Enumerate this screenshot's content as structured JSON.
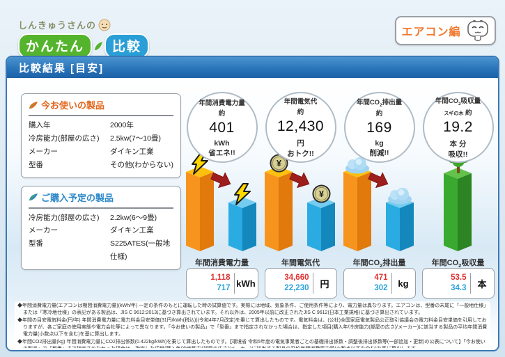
{
  "logo": {
    "prefix": "しんきゅうさんの",
    "brand_green": "かんたん",
    "brand_blue": "比較"
  },
  "edition_badge": {
    "label": "エアコン編"
  },
  "header": {
    "title": "比較結果 [目安]"
  },
  "current_product": {
    "title": "今お使いの製品",
    "rows": [
      {
        "label": "購入年",
        "value": "2000年"
      },
      {
        "label": "冷房能力(部屋の広さ)",
        "value": "2.5kw(7〜10畳)"
      },
      {
        "label": "メーカー",
        "value": "ダイキン工業"
      },
      {
        "label": "型番",
        "value": "その他(わからない)"
      }
    ]
  },
  "planned_product": {
    "title": "ご購入予定の製品",
    "rows": [
      {
        "label": "冷房能力(部屋の広さ)",
        "value": "2.2kw(6〜9畳)"
      },
      {
        "label": "メーカー",
        "value": "ダイキン工業"
      },
      {
        "label": "型番",
        "value": "S225ATES(一般地仕様)"
      }
    ]
  },
  "chart_data": {
    "type": "bar",
    "note": "old=current product (orange bar), new=planned product (blue bar); column 4 is a single green bar",
    "columns": [
      {
        "id": "power",
        "icon": "lightning",
        "bubble": {
          "title": "年間消費電力量",
          "approx": "約",
          "headline": "401",
          "unit_line": "kWh",
          "benefit": "省エネ!!"
        },
        "label": "年間消費電力量",
        "old_value": 1118,
        "new_value": 717,
        "old_display": "1,118",
        "new_display": "717",
        "unit": "kWh",
        "single_bar": false
      },
      {
        "id": "cost",
        "icon": "coin",
        "bubble": {
          "title": "年間電気代",
          "approx": "約",
          "headline": "12,430",
          "unit_line": "円",
          "benefit": "おトク!!"
        },
        "label": "年間電気代",
        "old_value": 34660,
        "new_value": 22230,
        "old_display": "34,660",
        "new_display": "22,230",
        "unit": "円",
        "single_bar": false
      },
      {
        "id": "co2-emission",
        "icon": "cloud",
        "bubble": {
          "title": "年間CO2排出量",
          "approx": "約",
          "headline": "169",
          "unit_line": "kg",
          "benefit": "削減!!"
        },
        "label": "年間CO2排出量",
        "old_value": 471,
        "new_value": 302,
        "old_display": "471",
        "new_display": "302",
        "unit": "kg",
        "single_bar": false
      },
      {
        "id": "co2-absorption",
        "icon": "tree",
        "bubble": {
          "title": "年間CO2吸収量",
          "pre_approx": "スギの木",
          "approx": "約",
          "headline": "19.2",
          "unit_line": "本 分",
          "benefit": "吸収!!"
        },
        "label": "年間CO2吸収量",
        "old_value": 53.5,
        "new_value": 34.3,
        "old_display": "53.5",
        "new_display": "34.3",
        "unit": "本",
        "single_bar": true
      }
    ]
  },
  "colors": {
    "header_blue": "#1b61a8",
    "panel_border": "#3c78b5",
    "accent_orange": "#ef7a2f",
    "title_current": "#e4661c",
    "title_planned": "#2b87c8",
    "old_value_red": "#e03131",
    "new_value_blue": "#29a3dc",
    "bar_orange": "#f7941e",
    "bar_blue": "#2aabe2",
    "bar_green": "#3aa92f",
    "arrow_red": "#9e1d1d"
  },
  "footnotes": [
    "◆年間消費電力量(エアコンは期間消費電力量)(kWh/年) 一定の条件のもとに運転した時の試算値です。実際には地域、気象条件、ご使用条件等により、電力量は異なります。エアコンは、型番の末尾に「一般地仕様」または「寒冷地仕様」の表記がある製品は、JIS C 9612:2013に基づき算出されています。それ以外は、2005年以前に改正されたJIS C 9612(日本工業規格)に基づき算出されています。",
    "◆年間の目安電気料金(円/年) 年間消費電力量に電力料金目安単価(31円/kWh(税込))(令和4年7月改定)を乗じて算出したものです。電気料金は、(公社)全国家庭電気製品公正取引協議会の電力料金目安単価を引用しておりますが、各ご家庭の使用実態や電力会社等によって異なります。「今お使いの製品」で「型番」まで指定されなかった場合は、指定した項目(購入年/冷房能力(部屋の広さ)/メーカー)に該当する製品の平均年間消費電力量(小数点以下を含む)を基に算出します。",
    "◆年間CO2排出量(kg) 年間消費電力量にCO2排出係数(0.422kg/kWh)を乗じて算出したものです。【環境省 令和5年度の電気事業者ごとの基礎排出係数・調整後排出係数等(一部追加・更新)の公表について】「今お使いの製品」で「型番」まで指定されなかった場合は、指定した項目(購入年/冷房能力(部屋の広さ)/メーカー)に該当する製品の平均年間消費電力量(小数点以下を含む)を基に算出します。",
    "◆CO2吸収量(本) 40年生の杉1本につき、年間平均約8.8kgCO2を吸収するものとして算出しています。【林野庁 「森林はどのくらいの量の二酸化炭素を吸収しているの?」より】"
  ]
}
